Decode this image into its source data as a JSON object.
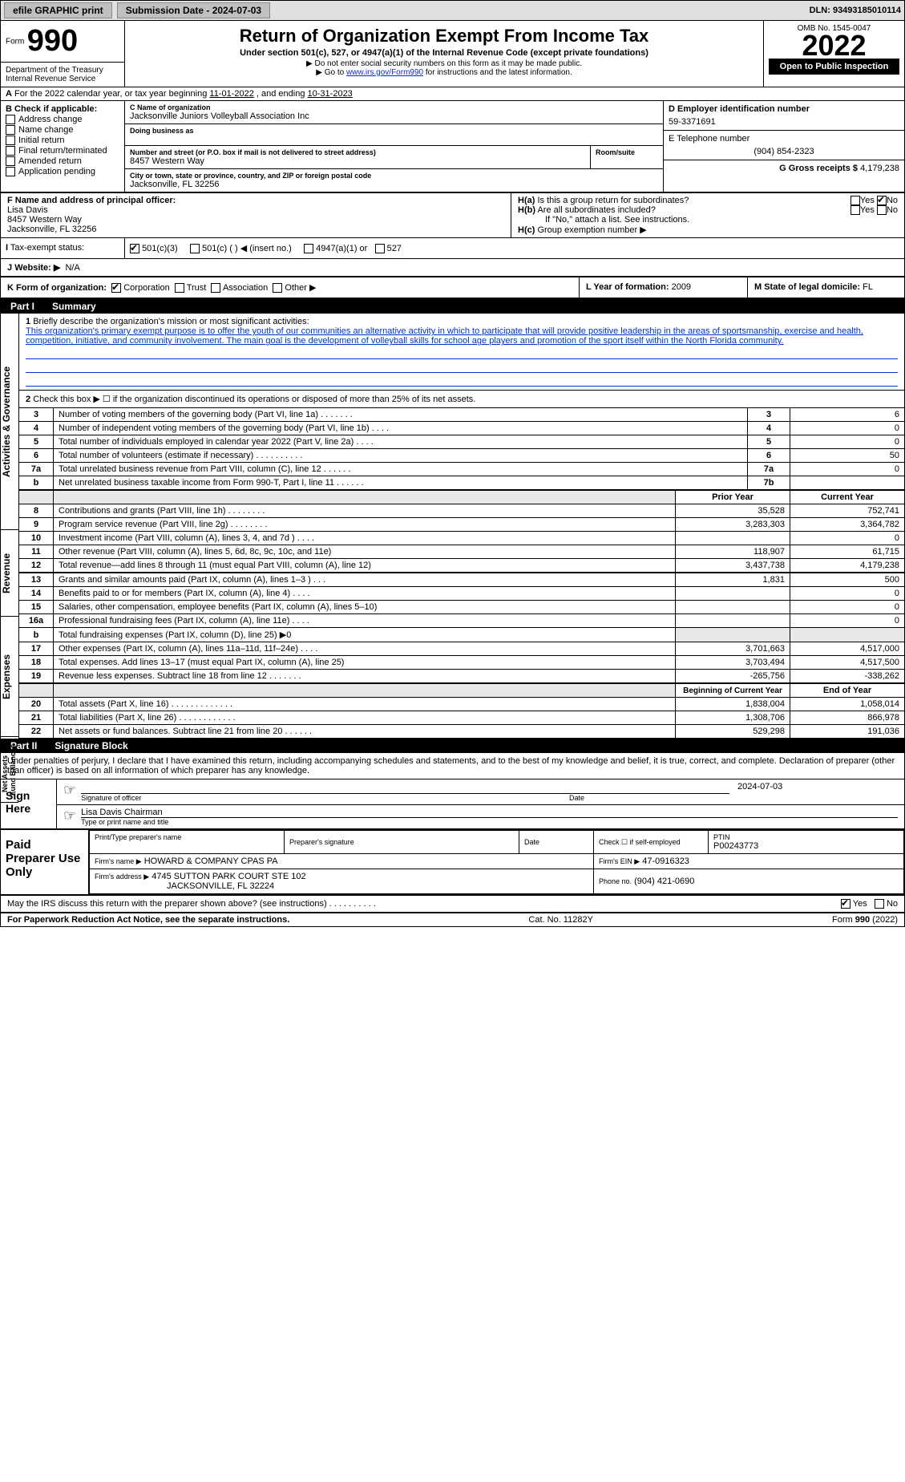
{
  "efile": {
    "label": "efile GRAPHIC print",
    "submission_label": "Submission Date - 2024-07-03",
    "dln": "DLN: 93493185010114"
  },
  "header": {
    "form_prefix": "Form",
    "form_number": "990",
    "dept": "Department of the Treasury",
    "irs": "Internal Revenue Service",
    "title": "Return of Organization Exempt From Income Tax",
    "sub1": "Under section 501(c), 527, or 4947(a)(1) of the Internal Revenue Code (except private foundations)",
    "sub2": "▶ Do not enter social security numbers on this form as it may be made public.",
    "sub3_pre": "▶ Go to ",
    "sub3_link": "www.irs.gov/Form990",
    "sub3_post": " for instructions and the latest information.",
    "omb": "OMB No. 1545-0047",
    "year": "2022",
    "open_pub": "Open to Public Inspection"
  },
  "A": {
    "text_pre": "For the 2022 calendar year, or tax year beginning ",
    "begin": "11-01-2022",
    "text_mid": " , and ending ",
    "end": "10-31-2023"
  },
  "B": {
    "label": "B Check if applicable:",
    "items": [
      "Address change",
      "Name change",
      "Initial return",
      "Final return/terminated",
      "Amended return",
      "Application pending"
    ]
  },
  "C": {
    "name_label": "C Name of organization",
    "name": "Jacksonville Juniors Volleyball Association Inc",
    "dba_label": "Doing business as",
    "street_label": "Number and street (or P.O. box if mail is not delivered to street address)",
    "room_label": "Room/suite",
    "street": "8457 Western Way",
    "city_label": "City or town, state or province, country, and ZIP or foreign postal code",
    "city": "Jacksonville, FL  32256"
  },
  "D": {
    "label": "D Employer identification number",
    "value": "59-3371691"
  },
  "E": {
    "label": "E Telephone number",
    "value": "(904) 854-2323"
  },
  "G": {
    "label": "G Gross receipts $",
    "value": "4,179,238"
  },
  "F": {
    "label": "F Name and address of principal officer:",
    "name": "Lisa Davis",
    "addr1": "8457 Western Way",
    "addr2": "Jacksonville, FL  32256"
  },
  "H": {
    "a": "Is this a group return for subordinates?",
    "b": "Are all subordinates included?",
    "b_note": "If \"No,\" attach a list. See instructions.",
    "c": "Group exemption number ▶",
    "ha_no_checked": true
  },
  "I": {
    "label": "Tax-exempt status:",
    "opt1": "501(c)(3)",
    "opt2": "501(c) (    ) ◀ (insert no.)",
    "opt3": "4947(a)(1) or",
    "opt4": "527"
  },
  "J": {
    "label": "Website: ▶",
    "value": "N/A"
  },
  "K": {
    "label": "K Form of organization:",
    "opts": [
      "Corporation",
      "Trust",
      "Association",
      "Other ▶"
    ]
  },
  "L": {
    "label": "L Year of formation:",
    "value": "2009"
  },
  "M": {
    "label": "M State of legal domicile:",
    "value": "FL"
  },
  "partI": {
    "header": "Part I",
    "title": "Summary",
    "line1_label": "Briefly describe the organization's mission or most significant activities:",
    "line1_text": "This organization's primary exempt purpose is to offer the youth of our communities an alternative activity in which to participate that will provide positive leadership in the areas of sportsmanship, exercise and health, competition, initiative, and community involvement. The main goal is the development of volleyball skills for school age players and promotion of the sport itself within the North Florida community.",
    "line2": "Check this box ▶ ☐  if the organization discontinued its operations or disposed of more than 25% of its net assets.",
    "rows_gov": [
      {
        "n": "3",
        "label": "Number of voting members of the governing body (Part VI, line 1a)    .    .    .    .    .    .    .",
        "box": "3",
        "val": "6"
      },
      {
        "n": "4",
        "label": "Number of independent voting members of the governing body (Part VI, line 1b)    .    .    .    .",
        "box": "4",
        "val": "0"
      },
      {
        "n": "5",
        "label": "Total number of individuals employed in calendar year 2022 (Part V, line 2a)    .    .    .    .",
        "box": "5",
        "val": "0"
      },
      {
        "n": "6",
        "label": "Total number of volunteers (estimate if necessary)    .    .    .    .    .    .    .    .    .    .",
        "box": "6",
        "val": "50"
      },
      {
        "n": "7a",
        "label": "Total unrelated business revenue from Part VIII, column (C), line 12    .    .    .    .    .    .",
        "box": "7a",
        "val": "0"
      },
      {
        "n": "b",
        "label": "Net unrelated business taxable income from Form 990-T, Part I, line 11    .    .    .    .    .    .",
        "box": "7b",
        "val": ""
      }
    ],
    "col_prior": "Prior Year",
    "col_curr": "Current Year",
    "rows_rev": [
      {
        "n": "8",
        "label": "Contributions and grants (Part VIII, line 1h)    .    .    .    .    .    .    .    .",
        "prior": "35,528",
        "curr": "752,741"
      },
      {
        "n": "9",
        "label": "Program service revenue (Part VIII, line 2g)    .    .    .    .    .    .    .    .",
        "prior": "3,283,303",
        "curr": "3,364,782"
      },
      {
        "n": "10",
        "label": "Investment income (Part VIII, column (A), lines 3, 4, and 7d )    .    .    .    .",
        "prior": "",
        "curr": "0"
      },
      {
        "n": "11",
        "label": "Other revenue (Part VIII, column (A), lines 5, 6d, 8c, 9c, 10c, and 11e)",
        "prior": "118,907",
        "curr": "61,715"
      },
      {
        "n": "12",
        "label": "Total revenue—add lines 8 through 11 (must equal Part VIII, column (A), line 12)",
        "prior": "3,437,738",
        "curr": "4,179,238"
      }
    ],
    "rows_exp": [
      {
        "n": "13",
        "label": "Grants and similar amounts paid (Part IX, column (A), lines 1–3 )    .    .    .",
        "prior": "1,831",
        "curr": "500"
      },
      {
        "n": "14",
        "label": "Benefits paid to or for members (Part IX, column (A), line 4)    .    .    .    .",
        "prior": "",
        "curr": "0"
      },
      {
        "n": "15",
        "label": "Salaries, other compensation, employee benefits (Part IX, column (A), lines 5–10)",
        "prior": "",
        "curr": "0"
      },
      {
        "n": "16a",
        "label": "Professional fundraising fees (Part IX, column (A), line 11e)    .    .    .    .",
        "prior": "",
        "curr": "0"
      },
      {
        "n": "b",
        "label": "Total fundraising expenses (Part IX, column (D), line 25) ▶0",
        "prior": "__grey__",
        "curr": "__grey__"
      },
      {
        "n": "17",
        "label": "Other expenses (Part IX, column (A), lines 11a–11d, 11f–24e)    .    .    .    .",
        "prior": "3,701,663",
        "curr": "4,517,000"
      },
      {
        "n": "18",
        "label": "Total expenses. Add lines 13–17 (must equal Part IX, column (A), line 25)",
        "prior": "3,703,494",
        "curr": "4,517,500"
      },
      {
        "n": "19",
        "label": "Revenue less expenses. Subtract line 18 from line 12    .    .    .    .    .    .    .",
        "prior": "-265,756",
        "curr": "-338,262"
      }
    ],
    "col_beg": "Beginning of Current Year",
    "col_end": "End of Year",
    "rows_net": [
      {
        "n": "20",
        "label": "Total assets (Part X, line 16)    .    .    .    .    .    .    .    .    .    .    .    .    .",
        "prior": "1,838,004",
        "curr": "1,058,014"
      },
      {
        "n": "21",
        "label": "Total liabilities (Part X, line 26)    .    .    .    .    .    .    .    .    .    .    .    .",
        "prior": "1,308,706",
        "curr": "866,978"
      },
      {
        "n": "22",
        "label": "Net assets or fund balances. Subtract line 21 from line 20    .    .    .    .    .    .",
        "prior": "529,298",
        "curr": "191,036"
      }
    ]
  },
  "partII": {
    "header": "Part II",
    "title": "Signature Block",
    "declare": "Under penalties of perjury, I declare that I have examined this return, including accompanying schedules and statements, and to the best of my knowledge and belief, it is true, correct, and complete. Declaration of preparer (other than officer) is based on all information of which preparer has any knowledge.",
    "sign_here": "Sign Here",
    "sig_officer": "Signature of officer",
    "sig_date": "2024-07-03",
    "date_label": "Date",
    "officer_name": "Lisa Davis  Chairman",
    "officer_label": "Type or print name and title",
    "paid_prep": "Paid Preparer Use Only",
    "prep_name_label": "Print/Type preparer's name",
    "prep_sig_label": "Preparer's signature",
    "prep_date_label": "Date",
    "check_self": "Check ☐ if self-employed",
    "ptin_label": "PTIN",
    "ptin": "P00243773",
    "firm_name_label": "Firm's name    ▶",
    "firm_name": "HOWARD & COMPANY CPAS PA",
    "firm_ein_label": "Firm's EIN ▶",
    "firm_ein": "47-0916323",
    "firm_addr_label": "Firm's address ▶",
    "firm_addr1": "4745 SUTTON PARK COURT STE 102",
    "firm_addr2": "JACKSONVILLE, FL  32224",
    "firm_phone_label": "Phone no.",
    "firm_phone": "(904) 421-0690",
    "may_irs": "May the IRS discuss this return with the preparer shown above? (see instructions)    .    .    .    .    .    .    .    .    .    .",
    "yes": "Yes",
    "no": "No"
  },
  "footer": {
    "left": "For Paperwork Reduction Act Notice, see the separate instructions.",
    "mid": "Cat. No. 11282Y",
    "right": "Form 990 (2022)"
  },
  "colors": {
    "link": "#0033cc",
    "black": "#000000",
    "grey": "#e8e8e8"
  }
}
